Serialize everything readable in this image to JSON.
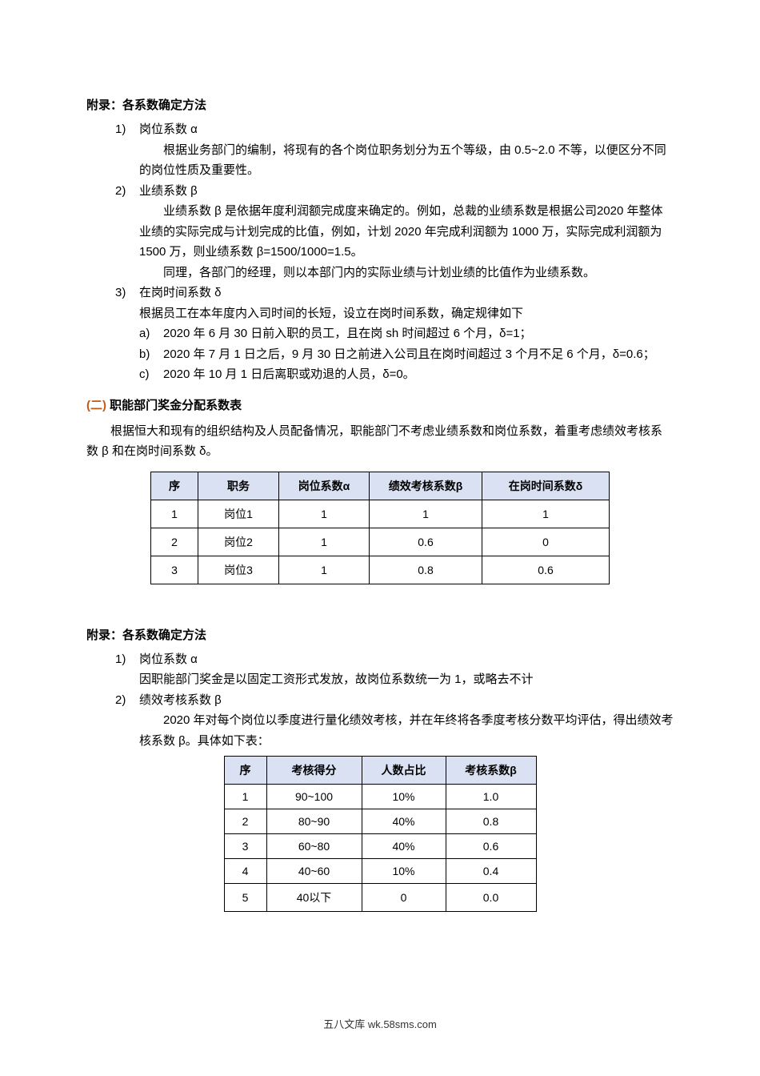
{
  "appendix1": {
    "title": "附录：各系数确定方法",
    "items": [
      {
        "label": "1)",
        "name": "岗位系数 α",
        "paras": [
          "根据业务部门的编制，将现有的各个岗位职务划分为五个等级，由 0.5~2.0 不等，以便区分不同的岗位性质及重要性。"
        ],
        "sub": []
      },
      {
        "label": "2)",
        "name": "业绩系数 β",
        "paras": [
          "业绩系数 β 是依据年度利润额完成度来确定的。例如，总裁的业绩系数是根据公司2020 年整体业绩的实际完成与计划完成的比值，例如，计划 2020 年完成利润额为 1000 万，实际完成利润额为 1500 万，则业绩系数 β=1500/1000=1.5。",
          "同理，各部门的经理，则以本部门内的实际业绩与计划业绩的比值作为业绩系数。"
        ],
        "sub": []
      },
      {
        "label": "3)",
        "name": "在岗时间系数 δ",
        "paras_ni": [
          "根据员工在本年度内入司时间的长短，设立在岗时间系数，确定规律如下"
        ],
        "sub": [
          {
            "label": "a)",
            "text": "2020 年 6 月 30 日前入职的员工，且在岗 sh 时间超过 6 个月，δ=1；"
          },
          {
            "label": "b)",
            "text": "2020 年 7 月 1 日之后，9 月 30 日之前进入公司且在岗时间超过 3 个月不足 6 个月，δ=0.6；"
          },
          {
            "label": "c)",
            "text": "2020 年 10 月 1 日后离职或劝退的人员，δ=0。"
          }
        ]
      }
    ]
  },
  "section2": {
    "ordinal": "(二) ",
    "title": "职能部门奖金分配系数表",
    "intro": "根据恒大和现有的组织结构及人员配备情况，职能部门不考虑业绩系数和岗位系数，着重考虑绩效考核系数 β 和在岗时间系数 δ。"
  },
  "table1": {
    "headers": [
      "序",
      "职务",
      "岗位系数α",
      "绩效考核系数β",
      "在岗时间系数δ"
    ],
    "rows": [
      [
        "1",
        "岗位1",
        "1",
        "1",
        "1"
      ],
      [
        "2",
        "岗位2",
        "1",
        "0.6",
        "0"
      ],
      [
        "3",
        "岗位3",
        "1",
        "0.8",
        "0.6"
      ]
    ],
    "header_bg": "#d9e1f2"
  },
  "appendix2": {
    "title": "附录：各系数确定方法",
    "items": [
      {
        "label": "1)",
        "name": "岗位系数 α",
        "paras_ni": [
          "因职能部门奖金是以固定工资形式发放，故岗位系数统一为 1，或略去不计"
        ]
      },
      {
        "label": "2)",
        "name": "绩效考核系数 β",
        "paras": [
          "2020 年对每个岗位以季度进行量化绩效考核，并在年终将各季度考核分数平均评估，得出绩效考核系数 β。具体如下表："
        ]
      }
    ]
  },
  "table2": {
    "headers": [
      "序",
      "考核得分",
      "人数占比",
      "考核系数β"
    ],
    "rows": [
      [
        "1",
        "90~100",
        "10%",
        "1.0"
      ],
      [
        "2",
        "80~90",
        "40%",
        "0.8"
      ],
      [
        "3",
        "60~80",
        "40%",
        "0.6"
      ],
      [
        "4",
        "40~60",
        "10%",
        "0.4"
      ],
      [
        "5",
        "40以下",
        "0",
        "0.0"
      ]
    ],
    "header_bg": "#d9e1f2"
  },
  "footer": "五八文库 wk.58sms.com"
}
